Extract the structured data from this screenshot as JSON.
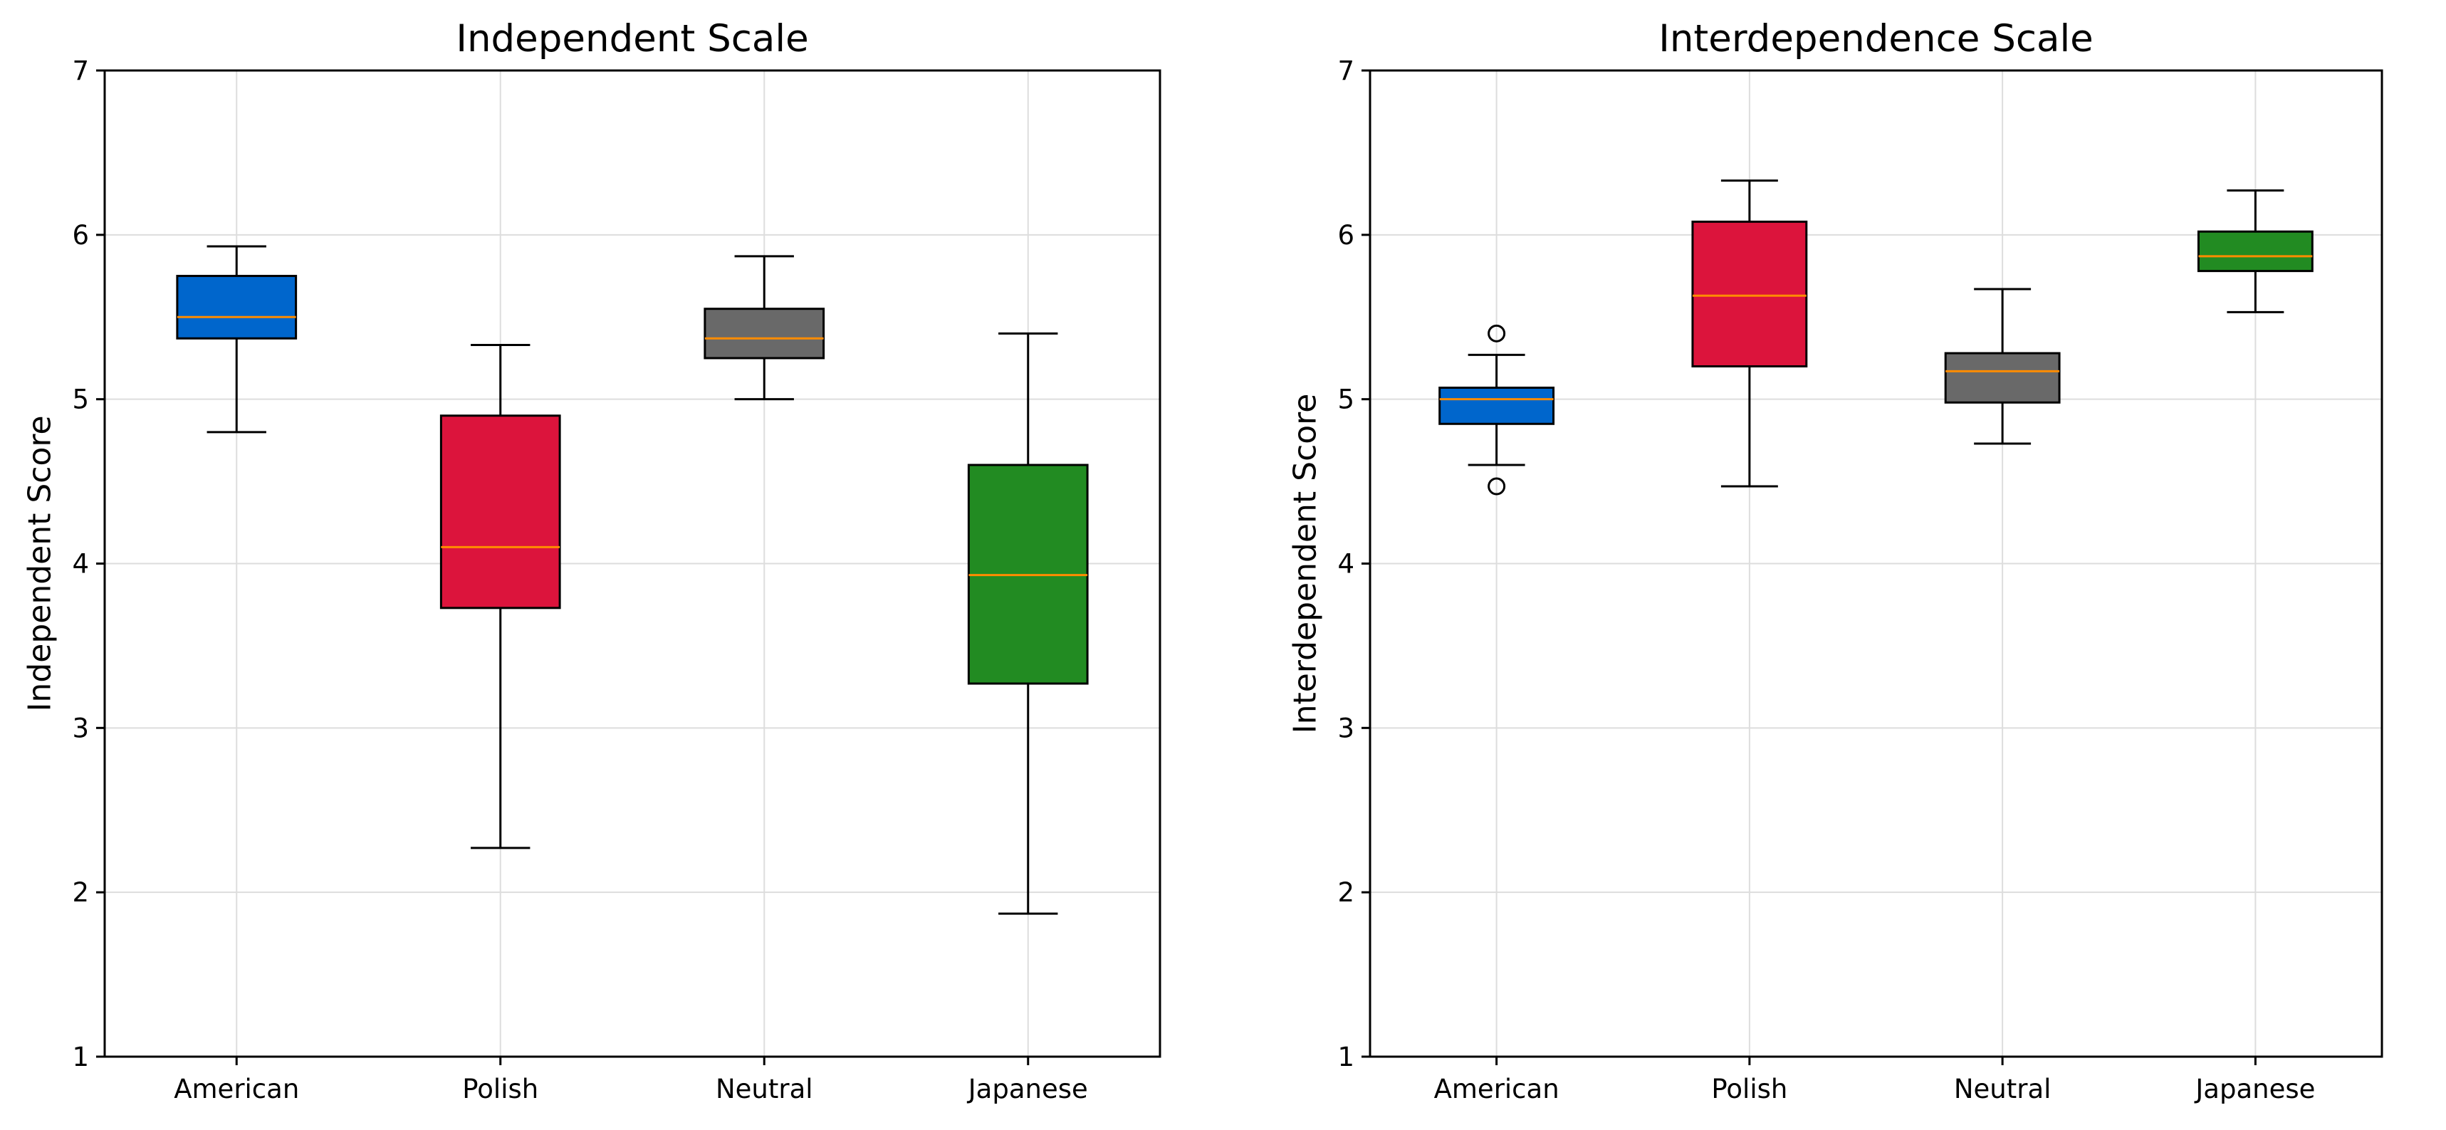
{
  "chart_data": [
    {
      "type": "box",
      "title": "Independent Scale",
      "xlabel": "",
      "ylabel": "Independent Score",
      "ylim": [
        1,
        7
      ],
      "yticks": [
        "1",
        "2",
        "3",
        "4",
        "5",
        "6",
        "7"
      ],
      "grid": true,
      "categories": [
        "American",
        "Polish",
        "Neutral",
        "Japanese"
      ],
      "colors": [
        "#0066cc",
        "#dc143c",
        "#696969",
        "#228b22"
      ],
      "median_color": "#ff8c00",
      "boxes": [
        {
          "whisker_low": 4.8,
          "q1": 5.37,
          "median": 5.5,
          "q3": 5.75,
          "whisker_high": 5.93,
          "outliers": []
        },
        {
          "whisker_low": 2.27,
          "q1": 3.73,
          "median": 4.1,
          "q3": 4.9,
          "whisker_high": 5.33,
          "outliers": []
        },
        {
          "whisker_low": 5.0,
          "q1": 5.25,
          "median": 5.37,
          "q3": 5.55,
          "whisker_high": 5.87,
          "outliers": []
        },
        {
          "whisker_low": 1.87,
          "q1": 3.27,
          "median": 3.93,
          "q3": 4.6,
          "whisker_high": 5.4,
          "outliers": []
        }
      ]
    },
    {
      "type": "box",
      "title": "Interdependence Scale",
      "xlabel": "",
      "ylabel": "Interdependent Score",
      "ylim": [
        1,
        7
      ],
      "yticks": [
        "1",
        "2",
        "3",
        "4",
        "5",
        "6",
        "7"
      ],
      "grid": true,
      "categories": [
        "American",
        "Polish",
        "Neutral",
        "Japanese"
      ],
      "colors": [
        "#0066cc",
        "#dc143c",
        "#696969",
        "#228b22"
      ],
      "median_color": "#ff8c00",
      "boxes": [
        {
          "whisker_low": 4.6,
          "q1": 4.85,
          "median": 5.0,
          "q3": 5.07,
          "whisker_high": 5.27,
          "outliers": [
            5.4,
            4.47
          ]
        },
        {
          "whisker_low": 4.47,
          "q1": 5.2,
          "median": 5.63,
          "q3": 6.08,
          "whisker_high": 6.33,
          "outliers": []
        },
        {
          "whisker_low": 4.73,
          "q1": 4.98,
          "median": 5.17,
          "q3": 5.28,
          "whisker_high": 5.67,
          "outliers": []
        },
        {
          "whisker_low": 5.53,
          "q1": 5.78,
          "median": 5.87,
          "q3": 6.02,
          "whisker_high": 6.27,
          "outliers": []
        }
      ]
    }
  ]
}
